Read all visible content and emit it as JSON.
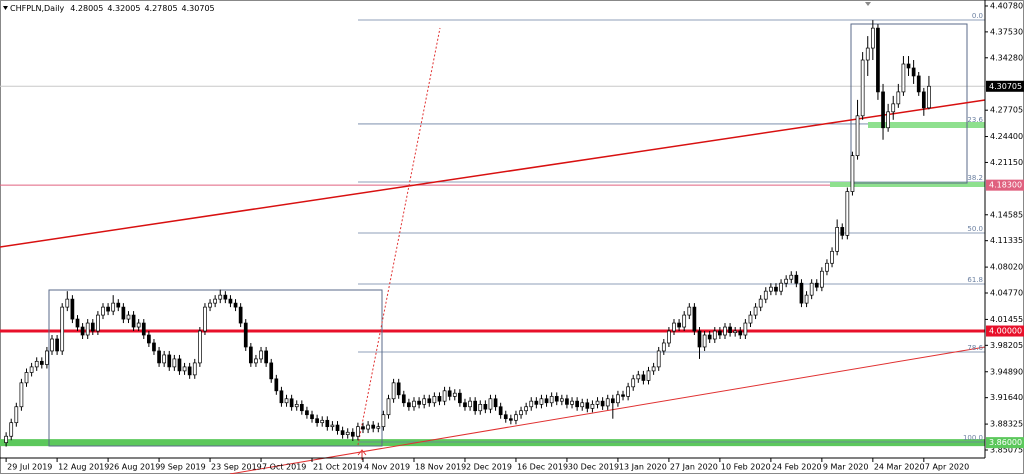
{
  "chart_data": {
    "type": "candlestick",
    "title": "CHFPLN,Daily",
    "color_up": "#ffffff",
    "color_down": "#000000",
    "xlim": [
      -1.2,
      192
    ],
    "ylim": [
      3.8407,
      4.4153
    ],
    "xticks": [
      {
        "value": 0,
        "label": "29 Jul 2019"
      },
      {
        "value": 10,
        "label": "12 Aug 2019"
      },
      {
        "value": 20,
        "label": "26 Aug 2019"
      },
      {
        "value": 30,
        "label": "9 Sep 2019"
      },
      {
        "value": 40,
        "label": "23 Sep 2019"
      },
      {
        "value": 50,
        "label": "7 Oct 2019"
      },
      {
        "value": 60,
        "label": "21 Oct 2019"
      },
      {
        "value": 70,
        "label": "4 Nov 2019"
      },
      {
        "value": 80,
        "label": "18 Nov 2019"
      },
      {
        "value": 90,
        "label": "2 Dec 2019"
      },
      {
        "value": 100,
        "label": "16 Dec 2019"
      },
      {
        "value": 110,
        "label": "30 Dec 2019"
      },
      {
        "value": 120,
        "label": "13 Jan 2020"
      },
      {
        "value": 130,
        "label": "27 Jan 2020"
      },
      {
        "value": 140,
        "label": "10 Feb 2020"
      },
      {
        "value": 150,
        "label": "24 Feb 2020"
      },
      {
        "value": 160,
        "label": "9 Mar 2020"
      },
      {
        "value": 170,
        "label": "24 Mar 2020"
      },
      {
        "value": 180,
        "label": "7 Apr 2020"
      }
    ],
    "yticks": [
      {
        "value": 4.4078,
        "label": "4.40780"
      },
      {
        "value": 4.3753,
        "label": "4.37530"
      },
      {
        "value": 4.3428,
        "label": "4.34280"
      },
      {
        "value": 4.27705,
        "label": "4.27705"
      },
      {
        "value": 4.244,
        "label": "4.24400"
      },
      {
        "value": 4.2115,
        "label": "4.21150"
      },
      {
        "value": 4.14585,
        "label": "4.14585"
      },
      {
        "value": 4.11335,
        "label": "4.11335"
      },
      {
        "value": 4.0802,
        "label": "4.08020"
      },
      {
        "value": 4.0477,
        "label": "4.04770"
      },
      {
        "value": 4.01455,
        "label": "4.01455"
      },
      {
        "value": 3.98205,
        "label": "3.98205"
      },
      {
        "value": 3.9489,
        "label": "3.94890"
      },
      {
        "value": 3.9164,
        "label": "3.91640"
      },
      {
        "value": 3.88325,
        "label": "3.88325"
      },
      {
        "value": 3.85075,
        "label": "3.85075"
      }
    ],
    "levels": [
      {
        "value": 4.183,
        "label": "4.18300",
        "color": "#e0607f"
      },
      {
        "value": 4,
        "label": "4.00000",
        "color": "#e8102a"
      },
      {
        "value": 3.86,
        "label": "3.86000",
        "color": "#5cc85c"
      }
    ],
    "fibonacci": [
      {
        "value": 4.3902,
        "label": "0.0"
      },
      {
        "value": 4.2598,
        "label": "23.6"
      },
      {
        "value": 4.187,
        "label": "38.2"
      },
      {
        "value": 4.123,
        "label": "50.0"
      },
      {
        "value": 4.059,
        "label": "61.8"
      },
      {
        "value": 3.9737,
        "label": "78.6"
      },
      {
        "value": 3.8608,
        "label": "100.0"
      }
    ],
    "candles": [
      [
        3.86,
        3.873,
        3.855,
        3.868
      ],
      [
        3.868,
        3.89,
        3.863,
        3.885
      ],
      [
        3.885,
        3.91,
        3.88,
        3.905
      ],
      [
        3.905,
        3.94,
        3.9,
        3.935
      ],
      [
        3.935,
        3.953,
        3.93,
        3.948
      ],
      [
        3.948,
        3.96,
        3.943,
        3.955
      ],
      [
        3.955,
        3.967,
        3.95,
        3.962
      ],
      [
        3.962,
        3.967,
        3.953,
        3.958
      ],
      [
        3.958,
        3.98,
        3.953,
        3.975
      ],
      [
        3.975,
        3.995,
        3.97,
        3.99
      ],
      [
        3.99,
        3.995,
        3.97,
        3.975
      ],
      [
        3.975,
        4.035,
        3.97,
        4.03
      ],
      [
        4.03,
        4.05,
        4.025,
        4.04
      ],
      [
        4.04,
        4.045,
        4.01,
        4.015
      ],
      [
        4.015,
        4.02,
        4.0,
        4.005
      ],
      [
        4.005,
        4.01,
        3.99,
        3.995
      ],
      [
        3.995,
        4.015,
        3.99,
        4.01
      ],
      [
        4.01,
        4.015,
        3.995,
        4.0
      ],
      [
        4.0,
        4.025,
        3.995,
        4.02
      ],
      [
        4.02,
        4.035,
        4.015,
        4.03
      ],
      [
        4.03,
        4.035,
        4.02,
        4.025
      ],
      [
        4.025,
        4.045,
        4.02,
        4.035
      ],
      [
        4.035,
        4.04,
        4.025,
        4.03
      ],
      [
        4.03,
        4.035,
        4.01,
        4.015
      ],
      [
        4.015,
        4.025,
        4.01,
        4.02
      ],
      [
        4.02,
        4.025,
        4.0,
        4.005
      ],
      [
        4.005,
        4.015,
        4.0,
        4.01
      ],
      [
        4.01,
        4.015,
        3.99,
        3.995
      ],
      [
        3.995,
        4.0,
        3.98,
        3.985
      ],
      [
        3.985,
        3.99,
        3.97,
        3.975
      ],
      [
        3.975,
        3.98,
        3.955,
        3.96
      ],
      [
        3.96,
        3.975,
        3.955,
        3.97
      ],
      [
        3.97,
        3.975,
        3.95,
        3.955
      ],
      [
        3.955,
        3.97,
        3.95,
        3.965
      ],
      [
        3.965,
        3.97,
        3.945,
        3.95
      ],
      [
        3.95,
        3.96,
        3.945,
        3.955
      ],
      [
        3.955,
        3.96,
        3.94,
        3.945
      ],
      [
        3.945,
        3.965,
        3.94,
        3.96
      ],
      [
        3.96,
        4.005,
        3.955,
        4.0
      ],
      [
        4.0,
        4.035,
        3.995,
        4.03
      ],
      [
        4.03,
        4.04,
        4.025,
        4.035
      ],
      [
        4.035,
        4.045,
        4.03,
        4.04
      ],
      [
        4.04,
        4.052,
        4.035,
        4.045
      ],
      [
        4.045,
        4.05,
        4.035,
        4.04
      ],
      [
        4.04,
        4.045,
        4.03,
        4.035
      ],
      [
        4.035,
        4.04,
        4.025,
        4.03
      ],
      [
        4.03,
        4.035,
        4.005,
        4.01
      ],
      [
        4.01,
        4.015,
        3.975,
        3.98
      ],
      [
        3.98,
        3.985,
        3.955,
        3.96
      ],
      [
        3.96,
        3.97,
        3.955,
        3.965
      ],
      [
        3.965,
        3.98,
        3.96,
        3.975
      ],
      [
        3.975,
        3.98,
        3.955,
        3.96
      ],
      [
        3.96,
        3.965,
        3.935,
        3.94
      ],
      [
        3.94,
        3.945,
        3.92,
        3.925
      ],
      [
        3.925,
        3.93,
        3.905,
        3.91
      ],
      [
        3.91,
        3.92,
        3.905,
        3.915
      ],
      [
        3.915,
        3.92,
        3.9,
        3.905
      ],
      [
        3.905,
        3.913,
        3.9,
        3.908
      ],
      [
        3.908,
        3.913,
        3.895,
        3.9
      ],
      [
        3.9,
        3.905,
        3.89,
        3.895
      ],
      [
        3.895,
        3.9,
        3.885,
        3.89
      ],
      [
        3.89,
        3.895,
        3.88,
        3.885
      ],
      [
        3.885,
        3.893,
        3.88,
        3.888
      ],
      [
        3.888,
        3.893,
        3.875,
        3.88
      ],
      [
        3.88,
        3.887,
        3.875,
        3.882
      ],
      [
        3.882,
        3.887,
        3.87,
        3.875
      ],
      [
        3.875,
        3.88,
        3.865,
        3.87
      ],
      [
        3.87,
        3.878,
        3.865,
        3.873
      ],
      [
        3.873,
        3.878,
        3.862,
        3.868
      ],
      [
        3.868,
        3.885,
        3.863,
        3.88
      ],
      [
        3.88,
        3.885,
        3.872,
        3.877
      ],
      [
        3.877,
        3.887,
        3.872,
        3.882
      ],
      [
        3.882,
        3.887,
        3.873,
        3.878
      ],
      [
        3.878,
        3.885,
        3.873,
        3.88
      ],
      [
        3.88,
        3.9,
        3.875,
        3.895
      ],
      [
        3.895,
        3.92,
        3.89,
        3.915
      ],
      [
        3.915,
        3.94,
        3.91,
        3.935
      ],
      [
        3.935,
        3.94,
        3.915,
        3.92
      ],
      [
        3.92,
        3.925,
        3.905,
        3.91
      ],
      [
        3.91,
        3.915,
        3.9,
        3.905
      ],
      [
        3.905,
        3.917,
        3.9,
        3.912
      ],
      [
        3.912,
        3.917,
        3.903,
        3.908
      ],
      [
        3.908,
        3.92,
        3.903,
        3.915
      ],
      [
        3.915,
        3.92,
        3.905,
        3.91
      ],
      [
        3.91,
        3.923,
        3.905,
        3.918
      ],
      [
        3.918,
        3.923,
        3.907,
        3.912
      ],
      [
        3.912,
        3.93,
        3.907,
        3.925
      ],
      [
        3.925,
        3.93,
        3.913,
        3.918
      ],
      [
        3.918,
        3.927,
        3.913,
        3.922
      ],
      [
        3.922,
        3.927,
        3.905,
        3.91
      ],
      [
        3.91,
        3.915,
        3.9,
        3.905
      ],
      [
        3.905,
        3.917,
        3.9,
        3.912
      ],
      [
        3.912,
        3.917,
        3.895,
        3.9
      ],
      [
        3.9,
        3.913,
        3.895,
        3.908
      ],
      [
        3.908,
        3.913,
        3.897,
        3.902
      ],
      [
        3.902,
        3.92,
        3.897,
        3.915
      ],
      [
        3.915,
        3.92,
        3.9,
        3.905
      ],
      [
        3.905,
        3.91,
        3.89,
        3.895
      ],
      [
        3.895,
        3.9,
        3.885,
        3.89
      ],
      [
        3.89,
        3.895,
        3.883,
        3.888
      ],
      [
        3.888,
        3.9,
        3.883,
        3.895
      ],
      [
        3.895,
        3.905,
        3.89,
        3.9
      ],
      [
        3.9,
        3.91,
        3.895,
        3.905
      ],
      [
        3.905,
        3.917,
        3.9,
        3.912
      ],
      [
        3.912,
        3.917,
        3.903,
        3.908
      ],
      [
        3.908,
        3.92,
        3.903,
        3.915
      ],
      [
        3.915,
        3.92,
        3.905,
        3.91
      ],
      [
        3.91,
        3.923,
        3.905,
        3.918
      ],
      [
        3.918,
        3.923,
        3.907,
        3.912
      ],
      [
        3.912,
        3.92,
        3.907,
        3.915
      ],
      [
        3.915,
        3.92,
        3.903,
        3.908
      ],
      [
        3.908,
        3.917,
        3.903,
        3.912
      ],
      [
        3.912,
        3.917,
        3.9,
        3.905
      ],
      [
        3.905,
        3.915,
        3.9,
        3.91
      ],
      [
        3.91,
        3.915,
        3.898,
        3.903
      ],
      [
        3.903,
        3.913,
        3.898,
        3.908
      ],
      [
        3.908,
        3.917,
        3.903,
        3.912
      ],
      [
        3.912,
        3.917,
        3.901,
        3.906
      ],
      [
        3.906,
        3.92,
        3.901,
        3.915
      ],
      [
        3.915,
        3.92,
        3.89,
        3.91
      ],
      [
        3.91,
        3.925,
        3.905,
        3.92
      ],
      [
        3.92,
        3.925,
        3.913,
        3.918
      ],
      [
        3.918,
        3.935,
        3.913,
        3.93
      ],
      [
        3.93,
        3.945,
        3.925,
        3.94
      ],
      [
        3.94,
        3.95,
        3.935,
        3.945
      ],
      [
        3.945,
        3.95,
        3.933,
        3.938
      ],
      [
        3.938,
        3.955,
        3.933,
        3.95
      ],
      [
        3.95,
        3.96,
        3.945,
        3.955
      ],
      [
        3.955,
        3.98,
        3.95,
        3.975
      ],
      [
        3.975,
        3.99,
        3.97,
        3.985
      ],
      [
        3.985,
        4.005,
        3.98,
        4.0
      ],
      [
        4.0,
        4.015,
        3.995,
        4.01
      ],
      [
        4.01,
        4.015,
        4.0,
        4.005
      ],
      [
        4.005,
        4.025,
        4.0,
        4.02
      ],
      [
        4.02,
        4.035,
        4.015,
        4.03
      ],
      [
        4.03,
        4.035,
        3.995,
        4.0
      ],
      [
        4.0,
        4.005,
        3.965,
        3.98
      ],
      [
        3.98,
        4.0,
        3.975,
        3.995
      ],
      [
        3.995,
        4.0,
        3.985,
        3.99
      ],
      [
        3.99,
        4.005,
        3.985,
        4.0
      ],
      [
        4.0,
        4.005,
        3.99,
        3.995
      ],
      [
        3.995,
        4.01,
        3.99,
        4.005
      ],
      [
        4.005,
        4.01,
        3.993,
        3.998
      ],
      [
        3.998,
        4.005,
        3.993,
        4.0
      ],
      [
        4.0,
        4.005,
        3.99,
        3.995
      ],
      [
        3.995,
        4.015,
        3.99,
        4.01
      ],
      [
        4.01,
        4.025,
        4.005,
        4.02
      ],
      [
        4.02,
        4.035,
        4.015,
        4.03
      ],
      [
        4.03,
        4.045,
        4.025,
        4.04
      ],
      [
        4.04,
        4.055,
        4.035,
        4.05
      ],
      [
        4.05,
        4.06,
        4.045,
        4.055
      ],
      [
        4.055,
        4.06,
        4.045,
        4.05
      ],
      [
        4.05,
        4.065,
        4.045,
        4.06
      ],
      [
        4.06,
        4.07,
        4.055,
        4.065
      ],
      [
        4.065,
        4.075,
        4.06,
        4.07
      ],
      [
        4.07,
        4.075,
        4.055,
        4.06
      ],
      [
        4.06,
        4.065,
        4.03,
        4.035
      ],
      [
        4.035,
        4.05,
        4.03,
        4.045
      ],
      [
        4.045,
        4.065,
        4.04,
        4.06
      ],
      [
        4.06,
        4.065,
        4.05,
        4.055
      ],
      [
        4.055,
        4.08,
        4.05,
        4.075
      ],
      [
        4.075,
        4.09,
        4.07,
        4.085
      ],
      [
        4.085,
        4.105,
        4.08,
        4.1
      ],
      [
        4.1,
        4.14,
        4.095,
        4.13
      ],
      [
        4.13,
        4.135,
        4.115,
        4.12
      ],
      [
        4.12,
        4.18,
        4.115,
        4.175
      ],
      [
        4.175,
        4.225,
        4.17,
        4.22
      ],
      [
        4.22,
        4.29,
        4.215,
        4.27
      ],
      [
        4.27,
        4.35,
        4.265,
        4.34
      ],
      [
        4.34,
        4.37,
        4.32,
        4.355
      ],
      [
        4.355,
        4.39,
        4.34,
        4.38
      ],
      [
        4.38,
        4.385,
        4.29,
        4.3
      ],
      [
        4.3,
        4.31,
        4.24,
        4.255
      ],
      [
        4.255,
        4.285,
        4.25,
        4.275
      ],
      [
        4.275,
        4.295,
        4.265,
        4.285
      ],
      [
        4.285,
        4.31,
        4.28,
        4.3
      ],
      [
        4.3,
        4.345,
        4.295,
        4.335
      ],
      [
        4.335,
        4.345,
        4.32,
        4.33
      ],
      [
        4.33,
        4.34,
        4.31,
        4.32
      ],
      [
        4.32,
        4.325,
        4.295,
        4.3
      ],
      [
        4.3,
        4.305,
        4.27,
        4.28
      ],
      [
        4.28005,
        4.32005,
        4.27805,
        4.30705
      ]
    ]
  }
}
